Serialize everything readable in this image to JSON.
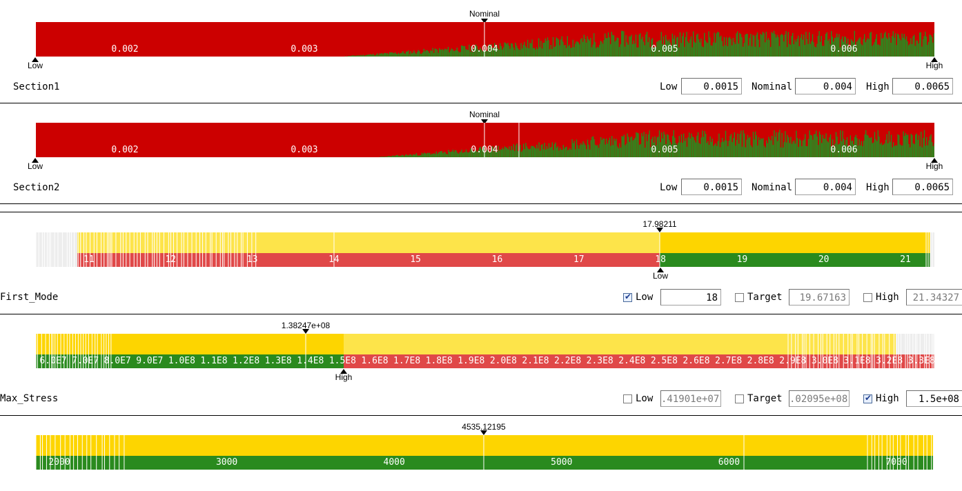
{
  "panels": [
    {
      "id": "section1",
      "name": "Section1",
      "nominal_marker": {
        "label": "Nominal",
        "value": 0.004
      },
      "low_marker": {
        "label": "Low"
      },
      "high_marker": {
        "label": "High"
      },
      "ticks": [
        "0.002",
        "0.003",
        "0.004",
        "0.005",
        "0.006"
      ],
      "fields": {
        "low_label": "Low",
        "low_value": "0.0015",
        "nominal_label": "Nominal",
        "nominal_value": "0.004",
        "high_label": "High",
        "high_value": "0.0065"
      }
    },
    {
      "id": "section2",
      "name": "Section2",
      "nominal_marker": {
        "label": "Nominal",
        "value": 0.004
      },
      "low_marker": {
        "label": "Low"
      },
      "high_marker": {
        "label": "High"
      },
      "ticks": [
        "0.002",
        "0.003",
        "0.004",
        "0.005",
        "0.006"
      ],
      "fields": {
        "low_label": "Low",
        "low_value": "0.0015",
        "nominal_label": "Nominal",
        "nominal_value": "0.004",
        "high_label": "High",
        "high_value": "0.0065"
      }
    },
    {
      "id": "first_mode",
      "name": "First_Mode",
      "value_marker": {
        "label": "17.98211"
      },
      "low_marker": {
        "label": "Low"
      },
      "ticks": [
        "11",
        "12",
        "13",
        "14",
        "15",
        "16",
        "17",
        "18",
        "19",
        "20",
        "21"
      ],
      "fields": {
        "low_checked": true,
        "low_label": "Low",
        "low_value": "18",
        "target_checked": false,
        "target_label": "Target",
        "target_value": "19.67163",
        "high_checked": false,
        "high_label": "High",
        "high_value": "21.34327"
      }
    },
    {
      "id": "max_stress",
      "name": "Max_Stress",
      "value_marker": {
        "label": "1.38247e+08"
      },
      "high_marker": {
        "label": "High"
      },
      "ticks": [
        "6.0E7",
        "7.0E7",
        "8.0E7",
        "9.0E7",
        "1.0E8",
        "1.1E8",
        "1.2E8",
        "1.3E8",
        "1.4E8",
        "1.5E8",
        "1.6E8",
        "1.7E8",
        "1.8E8",
        "1.9E8",
        "2.0E8",
        "2.1E8",
        "2.2E8",
        "2.3E8",
        "2.4E8",
        "2.5E8",
        "2.6E8",
        "2.7E8",
        "2.8E8",
        "2.9E8",
        "3.0E8",
        "3.1E8",
        "3.2E8",
        "3.3E8",
        "3.4E8"
      ],
      "fields": {
        "low_checked": false,
        "low_label": "Low",
        "low_value": ".41901e+07",
        "target_checked": false,
        "target_label": "Target",
        "target_value": ".02095e+08",
        "high_checked": true,
        "high_label": "High",
        "high_value": "1.5e+08"
      }
    },
    {
      "id": "panel5",
      "value_marker": {
        "label": "4535.12195"
      },
      "ticks": [
        "2000",
        "3000",
        "4000",
        "5000",
        "6000",
        "7000"
      ]
    }
  ],
  "colors": {
    "red": "#cc0000",
    "green": "#2a8a1e",
    "yellow_light": "#fde44a",
    "yellow": "#fdd500",
    "red_light": "#e04848",
    "grey": "#ededed"
  }
}
